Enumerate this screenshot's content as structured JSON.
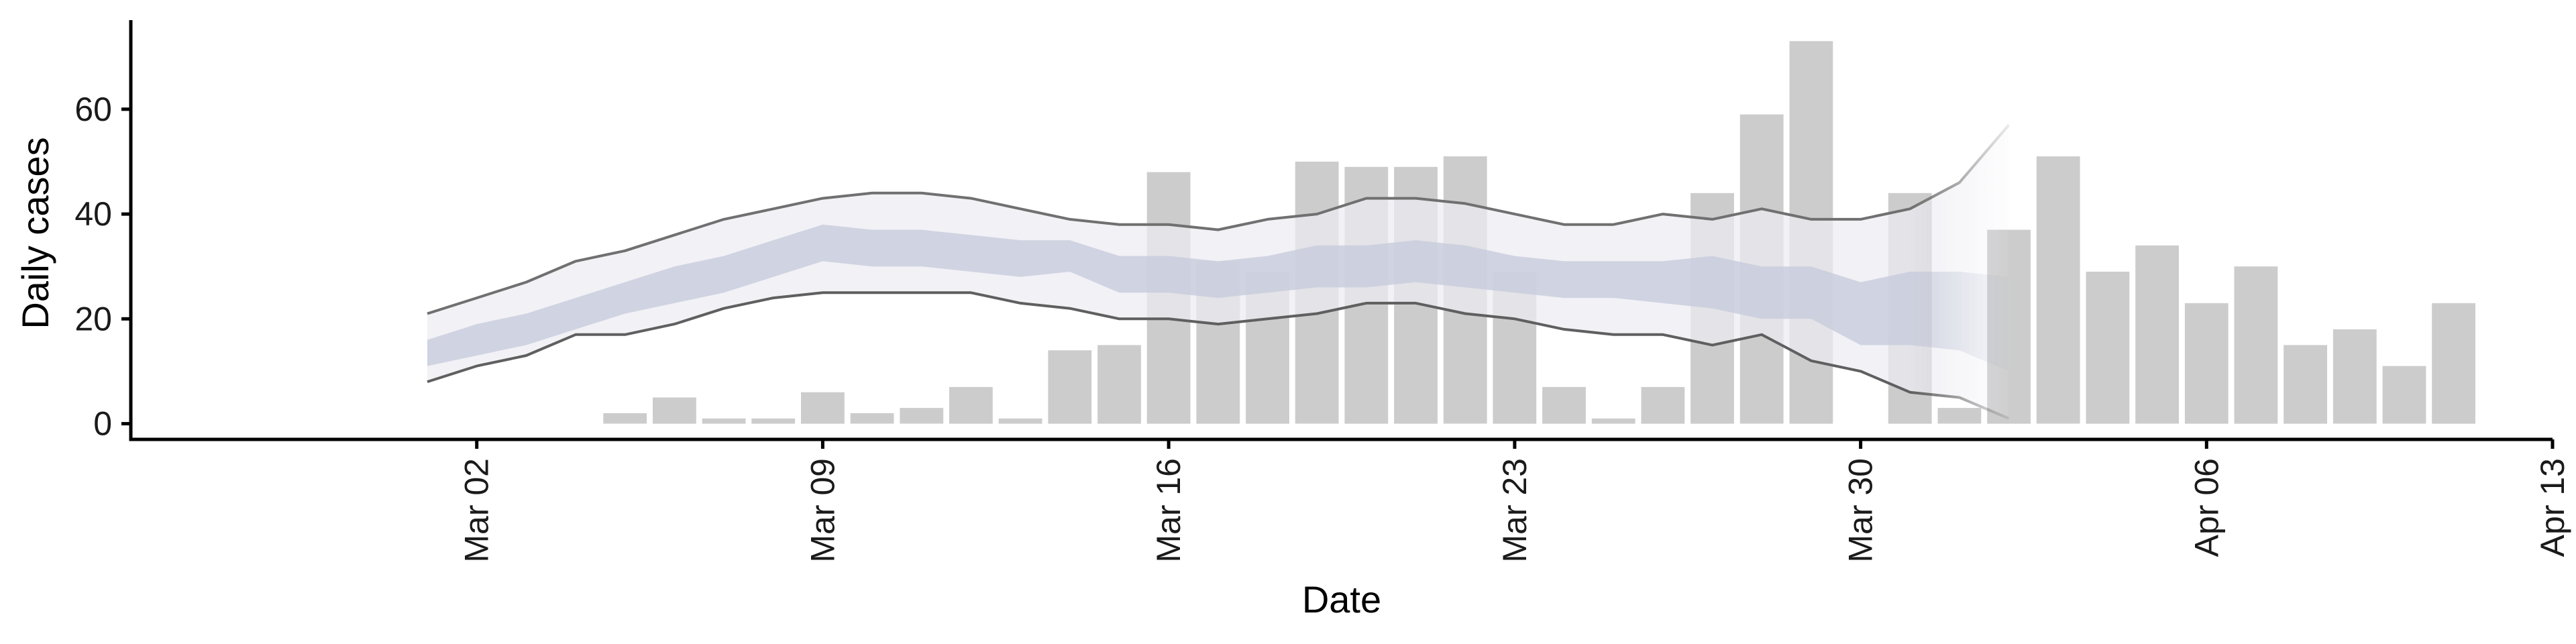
{
  "chart_data": {
    "type": "bar",
    "title": "",
    "xlabel": "Date",
    "ylabel": "Daily cases",
    "x_axis": {
      "ticks": [
        "2020-03-02",
        "2020-03-09",
        "2020-03-16",
        "2020-03-23",
        "2020-03-30",
        "2020-04-06",
        "2020-04-13"
      ],
      "tick_labels": [
        "Mar 02",
        "Mar 09",
        "Mar 16",
        "Mar 23",
        "Mar 30",
        "Apr 06",
        "Apr 13"
      ],
      "range": [
        "2020-02-24",
        "2020-04-13"
      ]
    },
    "y_axis": {
      "ticks": [
        0,
        20,
        40,
        60
      ],
      "tick_labels": [
        "0",
        "20",
        "40",
        "60"
      ],
      "range": [
        -3,
        77
      ]
    },
    "grid": false,
    "legend": "none",
    "colors": {
      "bars": "#cccccc",
      "band_inner": "#c6cadb",
      "band_outer": "#ebecf2",
      "line_upper": "#707070",
      "line_lower": "#5f5f5f",
      "axis": "#000000"
    },
    "bars": {
      "name": "",
      "dates": [
        "2020-03-05",
        "2020-03-06",
        "2020-03-07",
        "2020-03-08",
        "2020-03-09",
        "2020-03-10",
        "2020-03-11",
        "2020-03-12",
        "2020-03-13",
        "2020-03-14",
        "2020-03-15",
        "2020-03-16",
        "2020-03-17",
        "2020-03-18",
        "2020-03-19",
        "2020-03-20",
        "2020-03-21",
        "2020-03-22",
        "2020-03-23",
        "2020-03-24",
        "2020-03-25",
        "2020-03-26",
        "2020-03-27",
        "2020-03-28",
        "2020-03-29",
        "2020-03-31",
        "2020-04-01",
        "2020-04-02",
        "2020-04-03",
        "2020-04-04",
        "2020-04-05",
        "2020-04-06",
        "2020-04-07",
        "2020-04-08",
        "2020-04-09",
        "2020-04-10",
        "2020-04-11"
      ],
      "values": [
        2,
        5,
        1,
        1,
        6,
        2,
        3,
        7,
        1,
        14,
        15,
        48,
        31,
        29,
        50,
        49,
        49,
        51,
        29,
        7,
        1,
        7,
        44,
        59,
        73,
        44,
        3,
        37,
        51,
        29,
        34,
        23,
        30,
        15,
        18,
        11,
        23
      ]
    },
    "forecast": {
      "dates": [
        "2020-03-01",
        "2020-03-02",
        "2020-03-03",
        "2020-03-04",
        "2020-03-05",
        "2020-03-06",
        "2020-03-07",
        "2020-03-08",
        "2020-03-09",
        "2020-03-10",
        "2020-03-11",
        "2020-03-12",
        "2020-03-13",
        "2020-03-14",
        "2020-03-15",
        "2020-03-16",
        "2020-03-17",
        "2020-03-18",
        "2020-03-19",
        "2020-03-20",
        "2020-03-21",
        "2020-03-22",
        "2020-03-23",
        "2020-03-24",
        "2020-03-25",
        "2020-03-26",
        "2020-03-27",
        "2020-03-28",
        "2020-03-29",
        "2020-03-30",
        "2020-03-31",
        "2020-04-01",
        "2020-04-02"
      ],
      "inner_lower": [
        11,
        13,
        15,
        18,
        21,
        23,
        25,
        28,
        31,
        30,
        30,
        29,
        28,
        29,
        25,
        25,
        24,
        25,
        26,
        26,
        27,
        26,
        25,
        24,
        24,
        23,
        22,
        20,
        20,
        15,
        15,
        14,
        10
      ],
      "inner_upper": [
        16,
        19,
        21,
        24,
        27,
        30,
        32,
        35,
        38,
        37,
        37,
        36,
        35,
        35,
        32,
        32,
        31,
        32,
        34,
        34,
        35,
        34,
        32,
        31,
        31,
        31,
        32,
        30,
        30,
        27,
        29,
        29,
        28
      ],
      "lower": [
        8,
        11,
        13,
        17,
        17,
        19,
        22,
        24,
        25,
        25,
        25,
        25,
        23,
        22,
        20,
        20,
        19,
        20,
        21,
        23,
        23,
        21,
        20,
        18,
        17,
        17,
        15,
        17,
        12,
        10,
        6,
        5,
        1
      ],
      "upper": [
        21,
        24,
        27,
        31,
        33,
        36,
        39,
        41,
        43,
        44,
        44,
        43,
        41,
        39,
        38,
        38,
        37,
        39,
        40,
        43,
        43,
        42,
        40,
        38,
        38,
        40,
        39,
        41,
        39,
        39,
        41,
        46,
        57
      ],
      "fade_start": "2020-03-31",
      "fade_end": "2020-04-02"
    }
  }
}
